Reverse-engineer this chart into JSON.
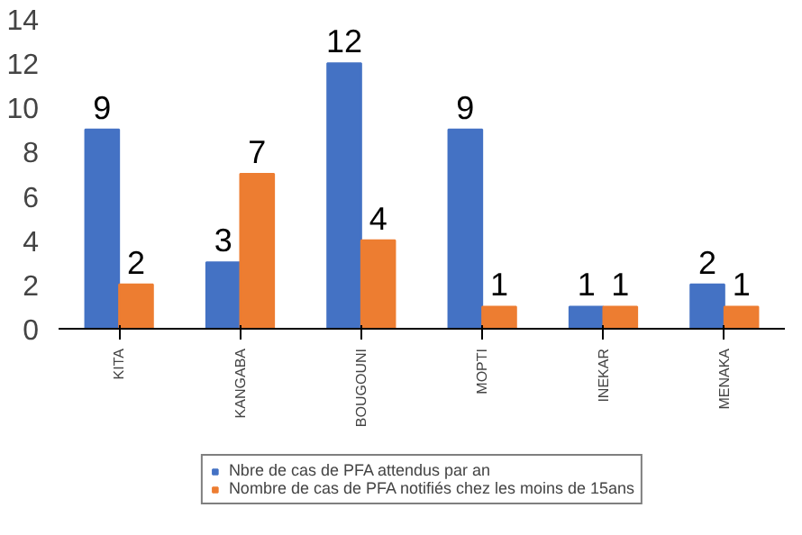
{
  "chart_data": {
    "type": "bar",
    "categories": [
      "KITA",
      "KANGABA",
      "BOUGOUNI",
      "MOPTI",
      "INEKAR",
      "MENAKA"
    ],
    "series": [
      {
        "name": "Nbre de cas de PFA attendus par an",
        "color": "#4472c4",
        "values": [
          9,
          3,
          12,
          9,
          1,
          2
        ]
      },
      {
        "name": "Nombre de cas de PFA notifiés chez les moins de 15ans",
        "color": "#ed7d31",
        "values": [
          2,
          7,
          4,
          1,
          1,
          1
        ]
      }
    ],
    "ylim": [
      0,
      14
    ],
    "yticks": [
      0,
      2,
      4,
      6,
      8,
      10,
      12,
      14
    ],
    "grid": false,
    "legend": "bottom",
    "data_labels": true
  }
}
